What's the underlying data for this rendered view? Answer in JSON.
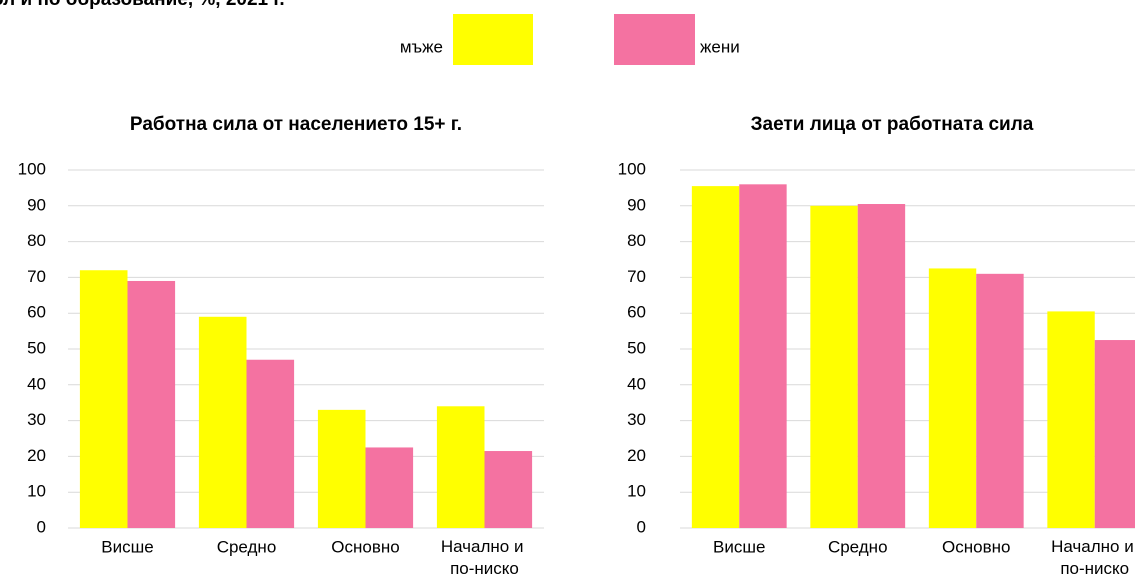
{
  "title": "ол и по образование, %, 2021 г.",
  "chart_data": [
    {
      "type": "bar",
      "title": "Работна сила от населението 15+ г.",
      "categories": [
        "Висше",
        "Средно",
        "Основно",
        "Начално и по-ниско"
      ],
      "series": [
        {
          "name": "мъже",
          "color": "#ffff00",
          "values": [
            72,
            59,
            33,
            34
          ]
        },
        {
          "name": "жени",
          "color": "#f472a1",
          "values": [
            69,
            47,
            22.5,
            21.5
          ]
        }
      ],
      "ylim": [
        0,
        100
      ],
      "yticks": [
        0,
        10,
        20,
        30,
        40,
        50,
        60,
        70,
        80,
        90,
        100
      ],
      "grid": true
    },
    {
      "type": "bar",
      "title": "Заети лица от работната сила",
      "categories": [
        "Висше",
        "Средно",
        "Основно",
        "Начално и по-ниско"
      ],
      "series": [
        {
          "color": "#ffff00",
          "values": [
            95.5,
            90,
            72.5,
            60.5
          ]
        },
        {
          "color": "#f472a1",
          "values": [
            96,
            90.5,
            71,
            52.5
          ]
        }
      ],
      "ylim": [
        0,
        100
      ],
      "yticks": [
        0,
        10,
        20,
        30,
        40,
        50,
        60,
        70,
        80,
        90,
        100
      ],
      "grid": true
    }
  ]
}
